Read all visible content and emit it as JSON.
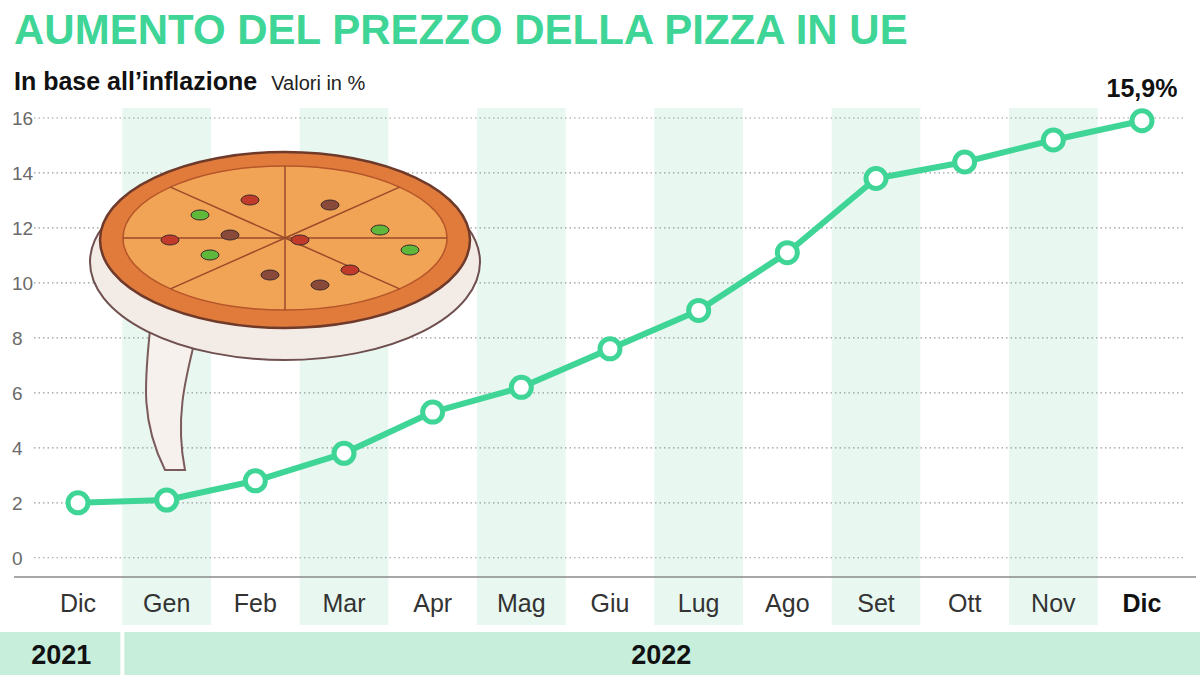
{
  "chart_data": {
    "type": "line",
    "title": "AUMENTO DEL PREZZO DELLA PIZZA IN UE",
    "subtitle": "In base all’inflazione",
    "ylabel": "Valori in %",
    "categories": [
      "Dic",
      "Gen",
      "Feb",
      "Mar",
      "Apr",
      "Mag",
      "Giu",
      "Lug",
      "Ago",
      "Set",
      "Ott",
      "Nov",
      "Dic"
    ],
    "values": [
      2.0,
      2.1,
      2.8,
      3.8,
      5.3,
      6.2,
      7.6,
      9.0,
      11.1,
      13.8,
      14.4,
      15.2,
      15.9
    ],
    "year_groups": [
      {
        "label": "2021",
        "start": 0,
        "end": 0
      },
      {
        "label": "2022",
        "start": 1,
        "end": 12
      }
    ],
    "annotations": [
      {
        "text": "15,9%",
        "category_index": 12
      }
    ],
    "color": "#3fd597",
    "marker": "circle",
    "ylim": [
      -0.7,
      16
    ],
    "yticks": [
      0,
      2,
      4,
      6,
      8,
      10,
      12,
      14,
      16
    ],
    "grid": true
  }
}
